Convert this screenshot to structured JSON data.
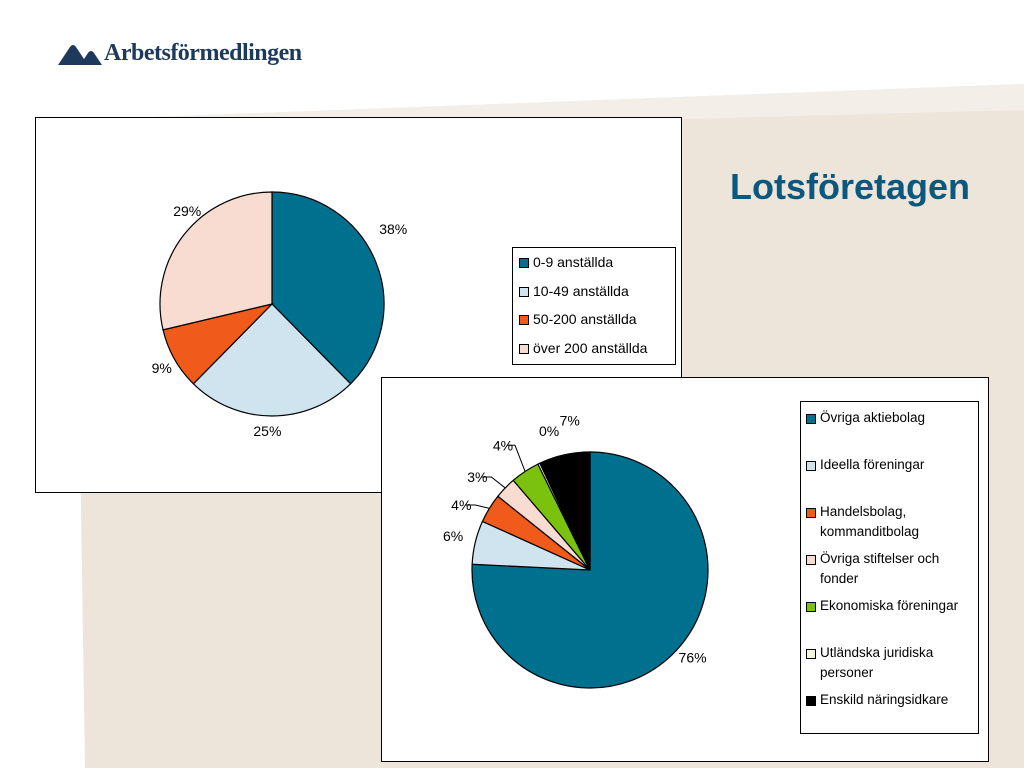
{
  "header": {
    "logo_text": "Arbetsförmedlingen",
    "slide_title": "Lotsföretagen"
  },
  "colors": {
    "title": "#0b587e",
    "logo": "#1d3a5c",
    "background_beige": "#ede5da"
  },
  "chart_data": [
    {
      "type": "pie",
      "title": "",
      "labels": [
        "0-9 anställda",
        "10-49 anställda",
        "50-200 anställda",
        "över 200 anställda"
      ],
      "values": [
        38,
        25,
        9,
        29
      ],
      "value_labels": [
        "38%",
        "25%",
        "9%",
        "29%"
      ],
      "colors": [
        "#00708f",
        "#cfe4ee",
        "#f05a1a",
        "#f8dcd1"
      ],
      "legend_position": "right"
    },
    {
      "type": "pie",
      "title": "",
      "labels": [
        "Övriga aktiebolag",
        "Ideella föreningar",
        "Handelsbolag, kommanditbolag",
        "Övriga stiftelser och fonder",
        "Ekonomiska föreningar",
        "Utländska juridiska personer",
        "Enskild näringsidkare"
      ],
      "values": [
        76,
        6,
        4,
        3,
        4,
        0.3,
        7
      ],
      "value_labels": [
        "76%",
        "6%",
        "4%",
        "3%",
        "4%",
        "0%",
        "7%"
      ],
      "colors": [
        "#00708f",
        "#cfe4ee",
        "#f05a1a",
        "#f8dcd1",
        "#7ac20e",
        "#f5f7da",
        "#000000"
      ],
      "legend_position": "right"
    }
  ]
}
